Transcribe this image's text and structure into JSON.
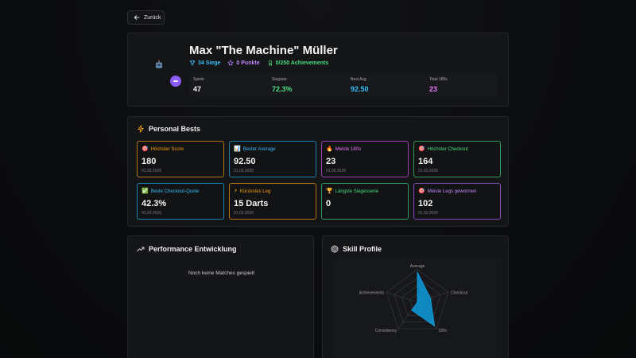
{
  "nav": {
    "back_label": "Zurück"
  },
  "profile": {
    "name": "Max \"The Machine\" Müller",
    "wins": "34 Siege",
    "points": "0 Punkte",
    "achievements": "0/250 Achievements",
    "stats": [
      {
        "label": "Spiele",
        "value": "47",
        "color": "#f4f4f5"
      },
      {
        "label": "Siegrate",
        "value": "72.3%",
        "color": "#4ade80"
      },
      {
        "label": "Best Avg",
        "value": "92.50",
        "color": "#38bdf8"
      },
      {
        "label": "Total 180s",
        "value": "23",
        "color": "#e879f9"
      }
    ]
  },
  "personal_bests": {
    "title": "Personal Bests",
    "items": [
      {
        "icon": "🎯",
        "label": "Höchster Score",
        "value": "180",
        "date": "01.02.2026",
        "color": "#f59e0b"
      },
      {
        "icon": "📊",
        "label": "Bester Average",
        "value": "92.50",
        "date": "01.02.2026",
        "color": "#38bdf8"
      },
      {
        "icon": "🔥",
        "label": "Meiste 180s",
        "value": "23",
        "date": "01.02.2026",
        "color": "#e879f9"
      },
      {
        "icon": "🎯",
        "label": "Höchster Checkout",
        "value": "164",
        "date": "01.02.2026",
        "color": "#4ade80"
      },
      {
        "icon": "✅",
        "label": "Beste Checkout-Quote",
        "value": "42.3%",
        "date": "01.02.2026",
        "color": "#38bdf8"
      },
      {
        "icon": "⚡",
        "label": "Kürzestes Leg",
        "value": "15 Darts",
        "date": "01.02.2026",
        "color": "#f59e0b"
      },
      {
        "icon": "🏆",
        "label": "Längste Siegesserie",
        "value": "0",
        "date": "-",
        "color": "#4ade80"
      },
      {
        "icon": "🎯",
        "label": "Meiste Legs gewonnen",
        "value": "102",
        "date": "01.02.2026",
        "color": "#c084fc"
      }
    ]
  },
  "performance": {
    "title": "Performance Entwicklung",
    "empty_message": "Noch keine Matches gespielt"
  },
  "skill_profile": {
    "title": "Skill Profile",
    "axes": [
      "Average",
      "Checkout",
      "180s",
      "Consistency",
      "Achievements"
    ],
    "values": [
      0.93,
      0.42,
      0.9,
      0.3,
      0.0
    ],
    "fill_color": "#0ea5e9"
  },
  "colors": {
    "wins": "#38bdf8",
    "points": "#c084fc",
    "achievements": "#4ade80",
    "accent_gold": "#f59e0b"
  }
}
